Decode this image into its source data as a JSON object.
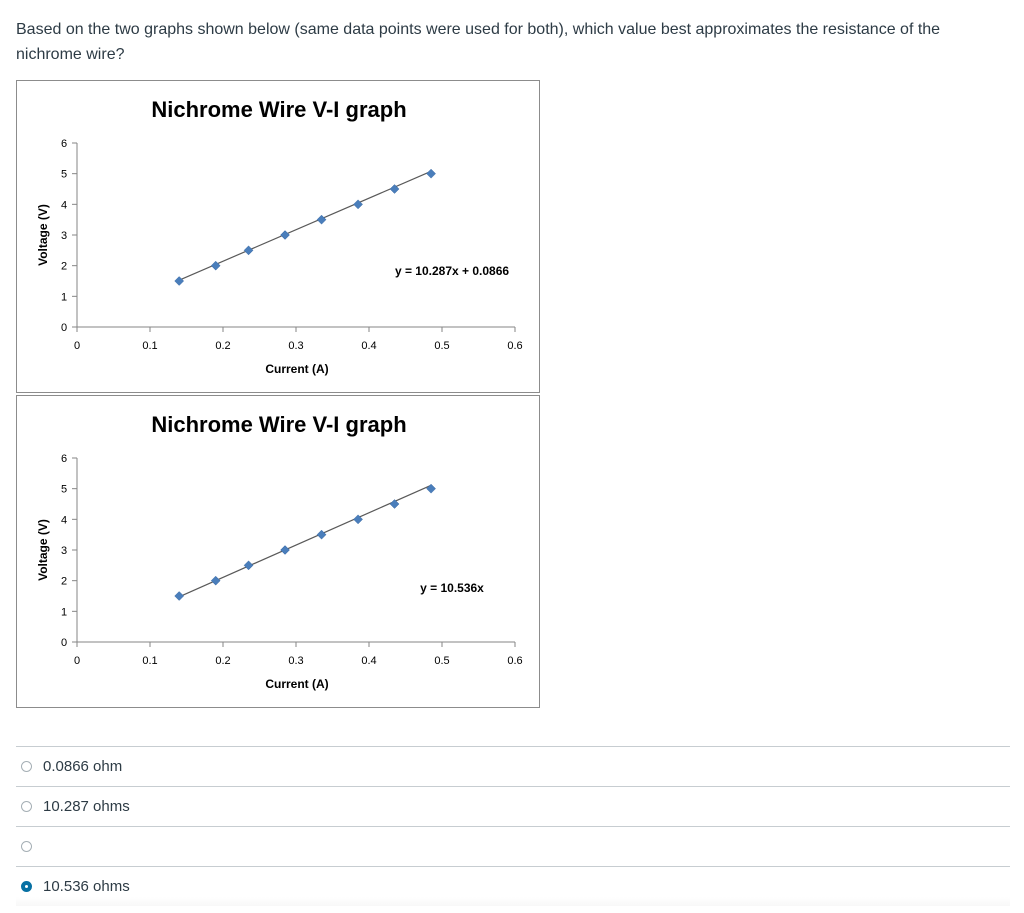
{
  "question": {
    "text": "Based on the two graphs shown below (same data points were used for both), which value best approximates the resistance of the nichrome wire?"
  },
  "colors": {
    "marker": "#4a7ebb",
    "trendline": "#595959",
    "selected": "#0770a3"
  },
  "chart_data": [
    {
      "type": "scatter",
      "title": "Nichrome Wire V-I graph",
      "xlabel": "Current (A)",
      "ylabel": "Voltage (V)",
      "xlim": [
        0,
        0.6
      ],
      "ylim": [
        0,
        6
      ],
      "xticks": [
        "0",
        "0.1",
        "0.2",
        "0.3",
        "0.4",
        "0.5",
        "0.6"
      ],
      "yticks": [
        "0",
        "1",
        "2",
        "3",
        "4",
        "5",
        "6"
      ],
      "series": [
        {
          "x": [
            0.14,
            0.19,
            0.235,
            0.285,
            0.335,
            0.385,
            0.435,
            0.485
          ],
          "y": [
            1.5,
            2.0,
            2.5,
            3.0,
            3.5,
            4.0,
            4.5,
            5.0
          ]
        }
      ],
      "trendline": {
        "slope": 10.287,
        "intercept": 0.0866,
        "label": "y = 10.287x + 0.0866"
      }
    },
    {
      "type": "scatter",
      "title": "Nichrome Wire V-I graph",
      "xlabel": "Current (A)",
      "ylabel": "Voltage (V)",
      "xlim": [
        0,
        0.6
      ],
      "ylim": [
        0,
        6
      ],
      "xticks": [
        "0",
        "0.1",
        "0.2",
        "0.3",
        "0.4",
        "0.5",
        "0.6"
      ],
      "yticks": [
        "0",
        "1",
        "2",
        "3",
        "4",
        "5",
        "6"
      ],
      "series": [
        {
          "x": [
            0.14,
            0.19,
            0.235,
            0.285,
            0.335,
            0.385,
            0.435,
            0.485
          ],
          "y": [
            1.5,
            2.0,
            2.5,
            3.0,
            3.5,
            4.0,
            4.5,
            5.0
          ]
        }
      ],
      "trendline": {
        "slope": 10.536,
        "intercept": 0,
        "label": "y = 10.536x"
      }
    }
  ],
  "answers": [
    {
      "label": "0.0866 ohm",
      "selected": false
    },
    {
      "label": "10.287 ohms",
      "selected": false
    },
    {
      "label": "",
      "selected": false
    },
    {
      "label": "10.536 ohms",
      "selected": true
    }
  ]
}
